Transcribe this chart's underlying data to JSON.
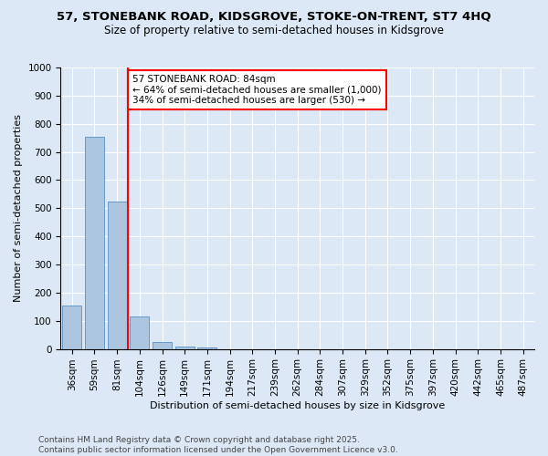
{
  "title": "57, STONEBANK ROAD, KIDSGROVE, STOKE-ON-TRENT, ST7 4HQ",
  "subtitle": "Size of property relative to semi-detached houses in Kidsgrove",
  "xlabel": "Distribution of semi-detached houses by size in Kidsgrove",
  "ylabel": "Number of semi-detached properties",
  "categories": [
    "36sqm",
    "59sqm",
    "81sqm",
    "104sqm",
    "126sqm",
    "149sqm",
    "171sqm",
    "194sqm",
    "217sqm",
    "239sqm",
    "262sqm",
    "284sqm",
    "307sqm",
    "329sqm",
    "352sqm",
    "375sqm",
    "397sqm",
    "420sqm",
    "442sqm",
    "465sqm",
    "487sqm"
  ],
  "values": [
    155,
    755,
    525,
    115,
    25,
    10,
    6,
    0,
    0,
    0,
    0,
    0,
    0,
    0,
    0,
    0,
    0,
    0,
    0,
    0,
    0
  ],
  "bar_color": "#adc6e0",
  "bar_edge_color": "#6699cc",
  "property_label": "57 STONEBANK ROAD: 84sqm",
  "annotation_line1": "← 64% of semi-detached houses are smaller (1,000)",
  "annotation_line2": "34% of semi-detached houses are larger (530) →",
  "ylim": [
    0,
    1000
  ],
  "yticks": [
    0,
    100,
    200,
    300,
    400,
    500,
    600,
    700,
    800,
    900,
    1000
  ],
  "footer_line1": "Contains HM Land Registry data © Crown copyright and database right 2025.",
  "footer_line2": "Contains public sector information licensed under the Open Government Licence v3.0.",
  "background_color": "#dce8f5",
  "plot_bg_color": "#dce8f5",
  "title_fontsize": 9.5,
  "subtitle_fontsize": 8.5,
  "axis_fontsize": 8,
  "tick_fontsize": 7.5,
  "annotation_fontsize": 7.5,
  "footer_fontsize": 6.5
}
